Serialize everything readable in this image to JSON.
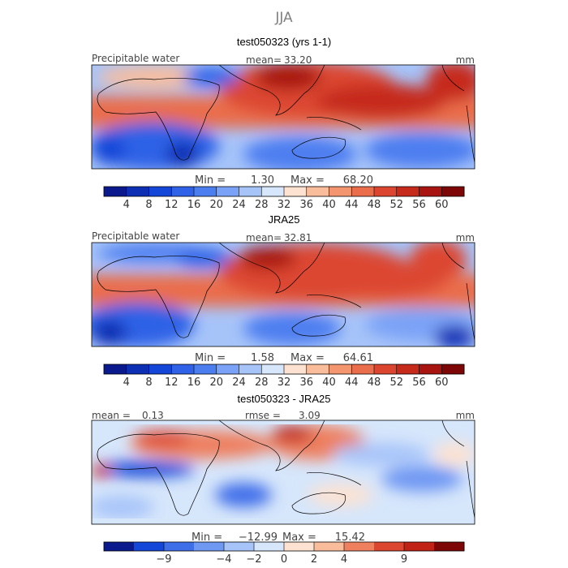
{
  "page_title": "JJA",
  "colors": {
    "seq": [
      "#0a1a8c",
      "#0d2fb4",
      "#1446d8",
      "#2f62e6",
      "#4d7ef0",
      "#7aa2f6",
      "#a7c4f9",
      "#d6e6fb",
      "#fde2d2",
      "#f9bd9c",
      "#f39670",
      "#ea6d4c",
      "#dc4630",
      "#c62a1b",
      "#a81410",
      "#7d0707"
    ],
    "div": [
      "#0a1a8c",
      "#1446d8",
      "#3f6ee9",
      "#6f98f3",
      "#a7c4f9",
      "#d6e6fb",
      "#fde2d2",
      "#f9bd9c",
      "#ee8060",
      "#dc4630",
      "#c02216",
      "#7d0707"
    ]
  },
  "chart_data": [
    {
      "type": "heatmap",
      "title": "test050323 (yrs 1-1)",
      "variable": "Precipitable water",
      "units": "mm",
      "mean_label": "mean=",
      "mean": "33.20",
      "min_label": "Min =",
      "min": "1.30",
      "max_label": "Max =",
      "max": "68.20",
      "colorbar_ticks": [
        "4",
        "8",
        "12",
        "16",
        "20",
        "24",
        "28",
        "32",
        "36",
        "40",
        "44",
        "48",
        "52",
        "56",
        "60"
      ],
      "n_colors": 16,
      "palette": "seq"
    },
    {
      "type": "heatmap",
      "title": "JRA25",
      "variable": "Precipitable water",
      "units": "mm",
      "mean_label": "mean=",
      "mean": "32.81",
      "min_label": "Min =",
      "min": "1.58",
      "max_label": "Max =",
      "max": "64.61",
      "colorbar_ticks": [
        "4",
        "8",
        "12",
        "16",
        "20",
        "24",
        "28",
        "32",
        "36",
        "40",
        "44",
        "48",
        "52",
        "56",
        "60"
      ],
      "n_colors": 16,
      "palette": "seq"
    },
    {
      "type": "heatmap",
      "title": "test050323 - JRA25",
      "units": "mm",
      "mean_label": "mean =",
      "mean": "0.13",
      "rmse_label": "rmse =",
      "rmse": "3.09",
      "min_label": "Min =",
      "min": "−12.99",
      "max_label": "Max =",
      "max": "15.42",
      "colorbar_ticks": [
        "−9",
        "−4",
        "−2",
        "0",
        "2",
        "4",
        "9"
      ],
      "n_colors": 12,
      "palette": "div"
    }
  ]
}
